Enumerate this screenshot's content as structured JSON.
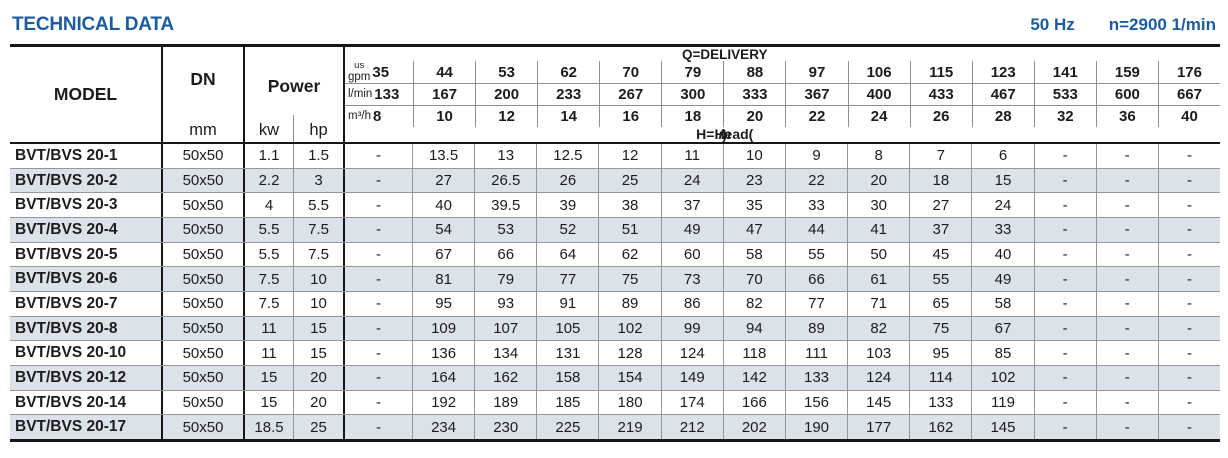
{
  "header": {
    "title": "TECHNICAL DATA",
    "frequency": "50 Hz",
    "speed": "n=2900 1/min"
  },
  "table": {
    "model_label": "MODEL",
    "dn_label": "DN",
    "dn_unit": "mm",
    "power_label": "Power",
    "power_unit_kw": "kw",
    "power_unit_hp": "hp",
    "delivery": {
      "title": "Q=DELIVERY",
      "head_title_prefix": "H=Head(",
      "head_title_unit": "m",
      "head_title_suffix": ")",
      "unit_rows": [
        {
          "unit_small": "us",
          "unit": "gpm",
          "values": [
            "35",
            "44",
            "53",
            "62",
            "70",
            "79",
            "88",
            "97",
            "106",
            "115",
            "123",
            "141",
            "159",
            "176"
          ]
        },
        {
          "unit_small": "",
          "unit": "l/min",
          "values": [
            "133",
            "167",
            "200",
            "233",
            "267",
            "300",
            "333",
            "367",
            "400",
            "433",
            "467",
            "533",
            "600",
            "667"
          ]
        },
        {
          "unit_small": "",
          "unit": "m³/h",
          "values": [
            "8",
            "10",
            "12",
            "14",
            "16",
            "18",
            "20",
            "22",
            "24",
            "26",
            "28",
            "32",
            "36",
            "40"
          ]
        }
      ]
    },
    "rows": [
      {
        "model": "BVT/BVS 20-1",
        "dn": "50x50",
        "kw": "1.1",
        "hp": "1.5",
        "head": [
          "-",
          "13.5",
          "13",
          "12.5",
          "12",
          "11",
          "10",
          "9",
          "8",
          "7",
          "6",
          "-",
          "-",
          "-"
        ]
      },
      {
        "model": "BVT/BVS 20-2",
        "dn": "50x50",
        "kw": "2.2",
        "hp": "3",
        "head": [
          "-",
          "27",
          "26.5",
          "26",
          "25",
          "24",
          "23",
          "22",
          "20",
          "18",
          "15",
          "-",
          "-",
          "-"
        ]
      },
      {
        "model": "BVT/BVS 20-3",
        "dn": "50x50",
        "kw": "4",
        "hp": "5.5",
        "head": [
          "-",
          "40",
          "39.5",
          "39",
          "38",
          "37",
          "35",
          "33",
          "30",
          "27",
          "24",
          "-",
          "-",
          "-"
        ]
      },
      {
        "model": "BVT/BVS 20-4",
        "dn": "50x50",
        "kw": "5.5",
        "hp": "7.5",
        "head": [
          "-",
          "54",
          "53",
          "52",
          "51",
          "49",
          "47",
          "44",
          "41",
          "37",
          "33",
          "-",
          "-",
          "-"
        ]
      },
      {
        "model": "BVT/BVS 20-5",
        "dn": "50x50",
        "kw": "5.5",
        "hp": "7.5",
        "head": [
          "-",
          "67",
          "66",
          "64",
          "62",
          "60",
          "58",
          "55",
          "50",
          "45",
          "40",
          "-",
          "-",
          "-"
        ]
      },
      {
        "model": "BVT/BVS 20-6",
        "dn": "50x50",
        "kw": "7.5",
        "hp": "10",
        "head": [
          "-",
          "81",
          "79",
          "77",
          "75",
          "73",
          "70",
          "66",
          "61",
          "55",
          "49",
          "-",
          "-",
          "-"
        ]
      },
      {
        "model": "BVT/BVS 20-7",
        "dn": "50x50",
        "kw": "7.5",
        "hp": "10",
        "head": [
          "-",
          "95",
          "93",
          "91",
          "89",
          "86",
          "82",
          "77",
          "71",
          "65",
          "58",
          "-",
          "-",
          "-"
        ]
      },
      {
        "model": "BVT/BVS 20-8",
        "dn": "50x50",
        "kw": "11",
        "hp": "15",
        "head": [
          "-",
          "109",
          "107",
          "105",
          "102",
          "99",
          "94",
          "89",
          "82",
          "75",
          "67",
          "-",
          "-",
          "-"
        ]
      },
      {
        "model": "BVT/BVS 20-10",
        "dn": "50x50",
        "kw": "11",
        "hp": "15",
        "head": [
          "-",
          "136",
          "134",
          "131",
          "128",
          "124",
          "118",
          "111",
          "103",
          "95",
          "85",
          "-",
          "-",
          "-"
        ]
      },
      {
        "model": "BVT/BVS 20-12",
        "dn": "50x50",
        "kw": "15",
        "hp": "20",
        "head": [
          "-",
          "164",
          "162",
          "158",
          "154",
          "149",
          "142",
          "133",
          "124",
          "114",
          "102",
          "-",
          "-",
          "-"
        ]
      },
      {
        "model": "BVT/BVS 20-14",
        "dn": "50x50",
        "kw": "15",
        "hp": "20",
        "head": [
          "-",
          "192",
          "189",
          "185",
          "180",
          "174",
          "166",
          "156",
          "145",
          "133",
          "119",
          "-",
          "-",
          "-"
        ]
      },
      {
        "model": "BVT/BVS 20-17",
        "dn": "50x50",
        "kw": "18.5",
        "hp": "25",
        "head": [
          "-",
          "234",
          "230",
          "225",
          "219",
          "212",
          "202",
          "190",
          "177",
          "162",
          "145",
          "-",
          "-",
          "-"
        ]
      }
    ]
  }
}
